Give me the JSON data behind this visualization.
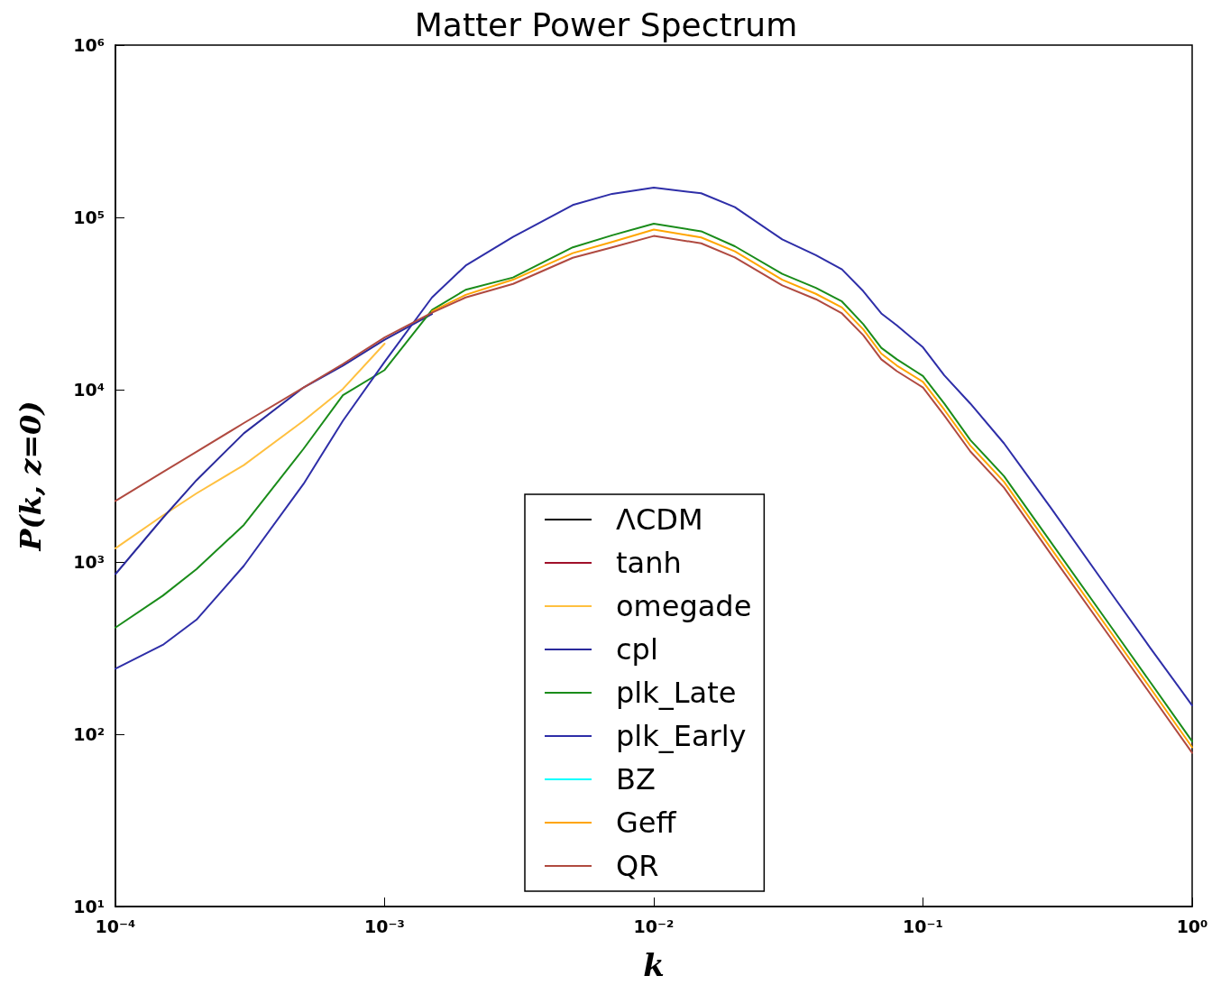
{
  "chart_data": {
    "type": "line",
    "title": "Matter Power Spectrum",
    "xlabel": "k",
    "ylabel": "P(k, z=0)",
    "x": [
      0.0001,
      0.00015,
      0.0002,
      0.0003,
      0.0005,
      0.0007,
      0.001,
      0.0015,
      0.002,
      0.003,
      0.005,
      0.007,
      0.01,
      0.015,
      0.02,
      0.03,
      0.04,
      0.05,
      0.06,
      0.07,
      0.08,
      0.1,
      0.12,
      0.15,
      0.2,
      0.3,
      0.5,
      0.7,
      1
    ],
    "series": [
      {
        "name": "ΛCDM",
        "color": "#000000",
        "values": [
          null,
          null,
          null,
          null,
          null,
          null,
          null,
          null,
          null,
          null,
          null,
          null,
          null,
          null,
          null,
          null,
          null,
          null,
          null,
          null,
          null,
          null,
          null,
          null,
          null,
          null,
          null,
          null,
          null
        ]
      },
      {
        "name": "tanh",
        "color": "#a0102a",
        "values": [
          null,
          null,
          null,
          null,
          null,
          null,
          null,
          null,
          null,
          null,
          null,
          null,
          null,
          null,
          null,
          null,
          null,
          null,
          null,
          null,
          null,
          null,
          null,
          null,
          null,
          null,
          null,
          null,
          null
        ]
      },
      {
        "name": "omegade",
        "color": "#ffc040",
        "values": [
          1200,
          1860,
          2500,
          3650,
          6600,
          10100,
          18500,
          null,
          null,
          null,
          null,
          null,
          null,
          null,
          null,
          null,
          null,
          null,
          null,
          null,
          null,
          null,
          null,
          null,
          null,
          null,
          null,
          null,
          null
        ]
      },
      {
        "name": "cpl",
        "color": "#2a2a9c",
        "values": [
          850,
          1800,
          2980,
          5580,
          10300,
          13800,
          19500,
          27500,
          null,
          null,
          null,
          null,
          null,
          null,
          null,
          null,
          null,
          null,
          null,
          null,
          null,
          null,
          null,
          null,
          null,
          null,
          null,
          null,
          null
        ]
      },
      {
        "name": "plk_Late",
        "color": "#1a8c1a",
        "values": [
          416,
          637,
          908,
          1640,
          4540,
          9290,
          13000,
          29000,
          38000,
          44800,
          67000,
          78700,
          92000,
          83000,
          68000,
          47000,
          39000,
          32500,
          24000,
          17500,
          15000,
          12000,
          8300,
          5100,
          3150,
          1290,
          420,
          200,
          91
        ]
      },
      {
        "name": "plk_Early",
        "color": "#2e2ea8",
        "values": [
          240,
          330,
          462,
          950,
          2840,
          6600,
          14500,
          34300,
          52500,
          77000,
          118000,
          137000,
          149000,
          138000,
          114600,
          74500,
          60400,
          49900,
          37300,
          27700,
          23600,
          17600,
          12100,
          8300,
          4880,
          2040,
          660,
          316,
          147
        ]
      },
      {
        "name": "BZ",
        "color": "#00ffff",
        "values": [
          null,
          null,
          null,
          null,
          null,
          null,
          null,
          null,
          null,
          null,
          null,
          null,
          null,
          null,
          null,
          null,
          null,
          null,
          null,
          null,
          null,
          null,
          null,
          null,
          null,
          null,
          null,
          null,
          null
        ]
      },
      {
        "name": "Geff",
        "color": "#ffa500",
        "values": [
          null,
          null,
          null,
          null,
          null,
          null,
          null,
          28500,
          35500,
          43500,
          62000,
          72000,
          85000,
          76500,
          63500,
          43500,
          36000,
          30000,
          22400,
          16200,
          13800,
          11100,
          7650,
          4730,
          2920,
          1190,
          388,
          185,
          84
        ]
      },
      {
        "name": "QR",
        "color": "#b04a40",
        "values": [
          2260,
          3320,
          4360,
          6400,
          10300,
          14100,
          20100,
          28000,
          34300,
          41100,
          58300,
          67000,
          78000,
          70700,
          58600,
          40300,
          33500,
          27700,
          20700,
          15000,
          12800,
          10300,
          7080,
          4380,
          2700,
          1100,
          359,
          171,
          78
        ]
      }
    ],
    "log": "xy",
    "xlim": [
      0.0001,
      1
    ],
    "ylim": [
      10,
      1000000
    ],
    "xticks": [
      {
        "value": 0.0001,
        "label": "10⁻⁴"
      },
      {
        "value": 0.001,
        "label": "10⁻³"
      },
      {
        "value": 0.01,
        "label": "10⁻²"
      },
      {
        "value": 0.1,
        "label": "10⁻¹"
      },
      {
        "value": 1,
        "label": "10⁰"
      }
    ],
    "yticks": [
      {
        "value": 10,
        "label": "10¹"
      },
      {
        "value": 100,
        "label": "10²"
      },
      {
        "value": 1000,
        "label": "10³"
      },
      {
        "value": 10000,
        "label": "10⁴"
      },
      {
        "value": 100000,
        "label": "10⁵"
      },
      {
        "value": 1000000,
        "label": "10⁶"
      }
    ],
    "grid": false,
    "legend": "bottom",
    "marker": "none",
    "line_style": "solid"
  }
}
